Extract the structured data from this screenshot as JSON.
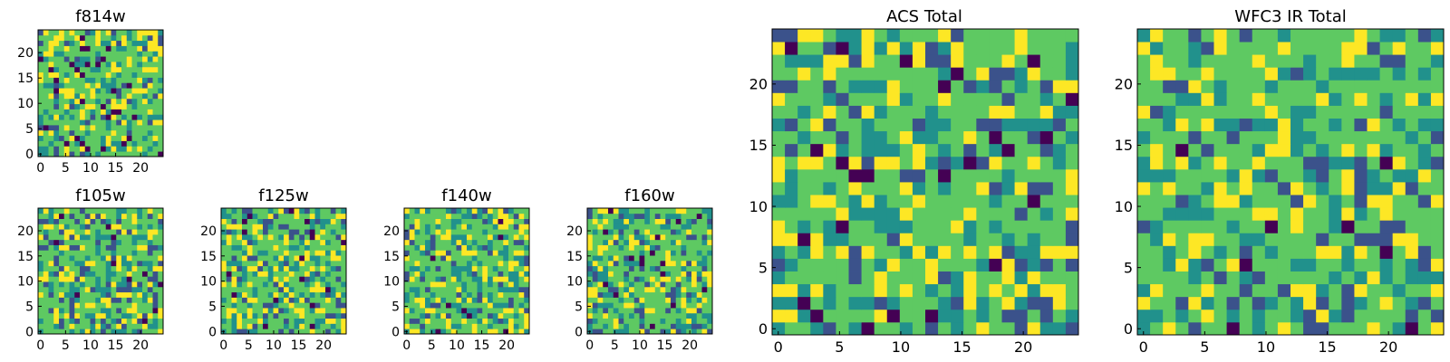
{
  "colormap": [
    "#440154",
    "#3b528b",
    "#21918c",
    "#5ec962",
    "#fde725"
  ],
  "chart_data": [
    {
      "type": "heatmap",
      "title": "f814w",
      "xlim": [
        0,
        24
      ],
      "ylim": [
        0,
        24
      ],
      "grid_size": 24,
      "x_ticks": [
        "0",
        "5",
        "10",
        "15",
        "20"
      ],
      "y_ticks": [
        "0",
        "5",
        "10",
        "15",
        "20"
      ],
      "seed": 11,
      "dark_fraction": 0.05
    },
    {
      "type": "heatmap",
      "title": "f105w",
      "xlim": [
        0,
        24
      ],
      "ylim": [
        0,
        24
      ],
      "grid_size": 24,
      "x_ticks": [
        "0",
        "5",
        "10",
        "15",
        "20"
      ],
      "y_ticks": [
        "0",
        "5",
        "10",
        "15",
        "20"
      ],
      "seed": 23,
      "dark_fraction": 0.02
    },
    {
      "type": "heatmap",
      "title": "f125w",
      "xlim": [
        0,
        24
      ],
      "ylim": [
        0,
        24
      ],
      "grid_size": 24,
      "x_ticks": [
        "0",
        "5",
        "10",
        "15",
        "20"
      ],
      "y_ticks": [
        "0",
        "5",
        "10",
        "15",
        "20"
      ],
      "seed": 37,
      "dark_fraction": 0.03
    },
    {
      "type": "heatmap",
      "title": "f140w",
      "xlim": [
        0,
        24
      ],
      "ylim": [
        0,
        24
      ],
      "grid_size": 24,
      "x_ticks": [
        "0",
        "5",
        "10",
        "15",
        "20"
      ],
      "y_ticks": [
        "0",
        "5",
        "10",
        "15",
        "20"
      ],
      "seed": 41,
      "dark_fraction": 0.02
    },
    {
      "type": "heatmap",
      "title": "f160w",
      "xlim": [
        0,
        24
      ],
      "ylim": [
        0,
        24
      ],
      "grid_size": 24,
      "x_ticks": [
        "0",
        "5",
        "10",
        "15",
        "20"
      ],
      "y_ticks": [
        "0",
        "5",
        "10",
        "15",
        "20"
      ],
      "seed": 53,
      "dark_fraction": 0.03
    },
    {
      "type": "heatmap",
      "title": "ACS Total",
      "xlim": [
        0,
        24
      ],
      "ylim": [
        0,
        24
      ],
      "grid_size": 24,
      "x_ticks": [
        "0",
        "5",
        "10",
        "15",
        "20"
      ],
      "y_ticks": [
        "0",
        "5",
        "10",
        "15",
        "20"
      ],
      "seed": 67,
      "dark_fraction": 0.03
    },
    {
      "type": "heatmap",
      "title": "WFC3 IR Total",
      "xlim": [
        0,
        24
      ],
      "ylim": [
        0,
        24
      ],
      "grid_size": 24,
      "x_ticks": [
        "0",
        "5",
        "10",
        "15",
        "20"
      ],
      "y_ticks": [
        "0",
        "5",
        "10",
        "15",
        "20"
      ],
      "seed": 79,
      "dark_fraction": 0.02
    }
  ]
}
